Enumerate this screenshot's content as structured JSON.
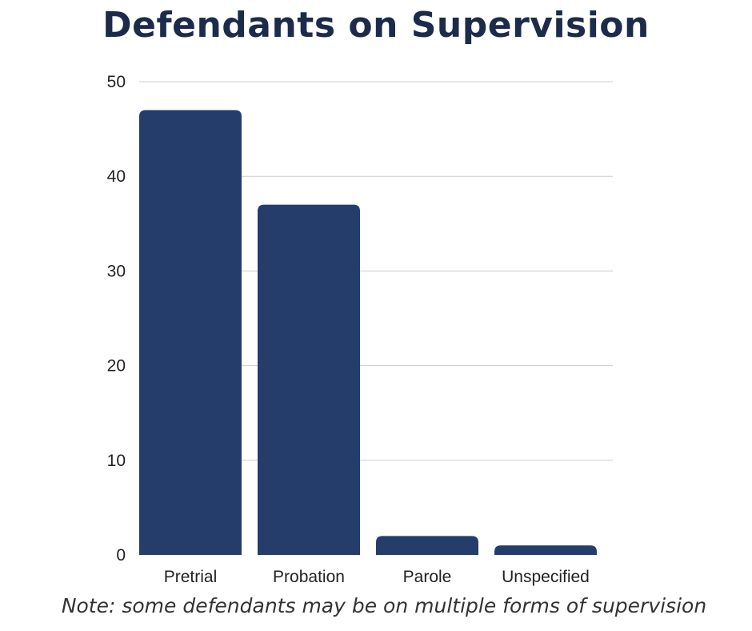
{
  "chart_data": {
    "type": "bar",
    "title": "Defendants on Supervision",
    "categories": [
      "Pretrial",
      "Probation",
      "Parole",
      "Unspecified"
    ],
    "values": [
      47,
      37,
      2,
      1
    ],
    "ylim": [
      0,
      50
    ],
    "yticks": [
      0,
      10,
      20,
      30,
      40,
      50
    ],
    "grid": true,
    "bar_color": "#253d6b",
    "note": "Note: some defendants may be on multiple forms of supervision"
  }
}
